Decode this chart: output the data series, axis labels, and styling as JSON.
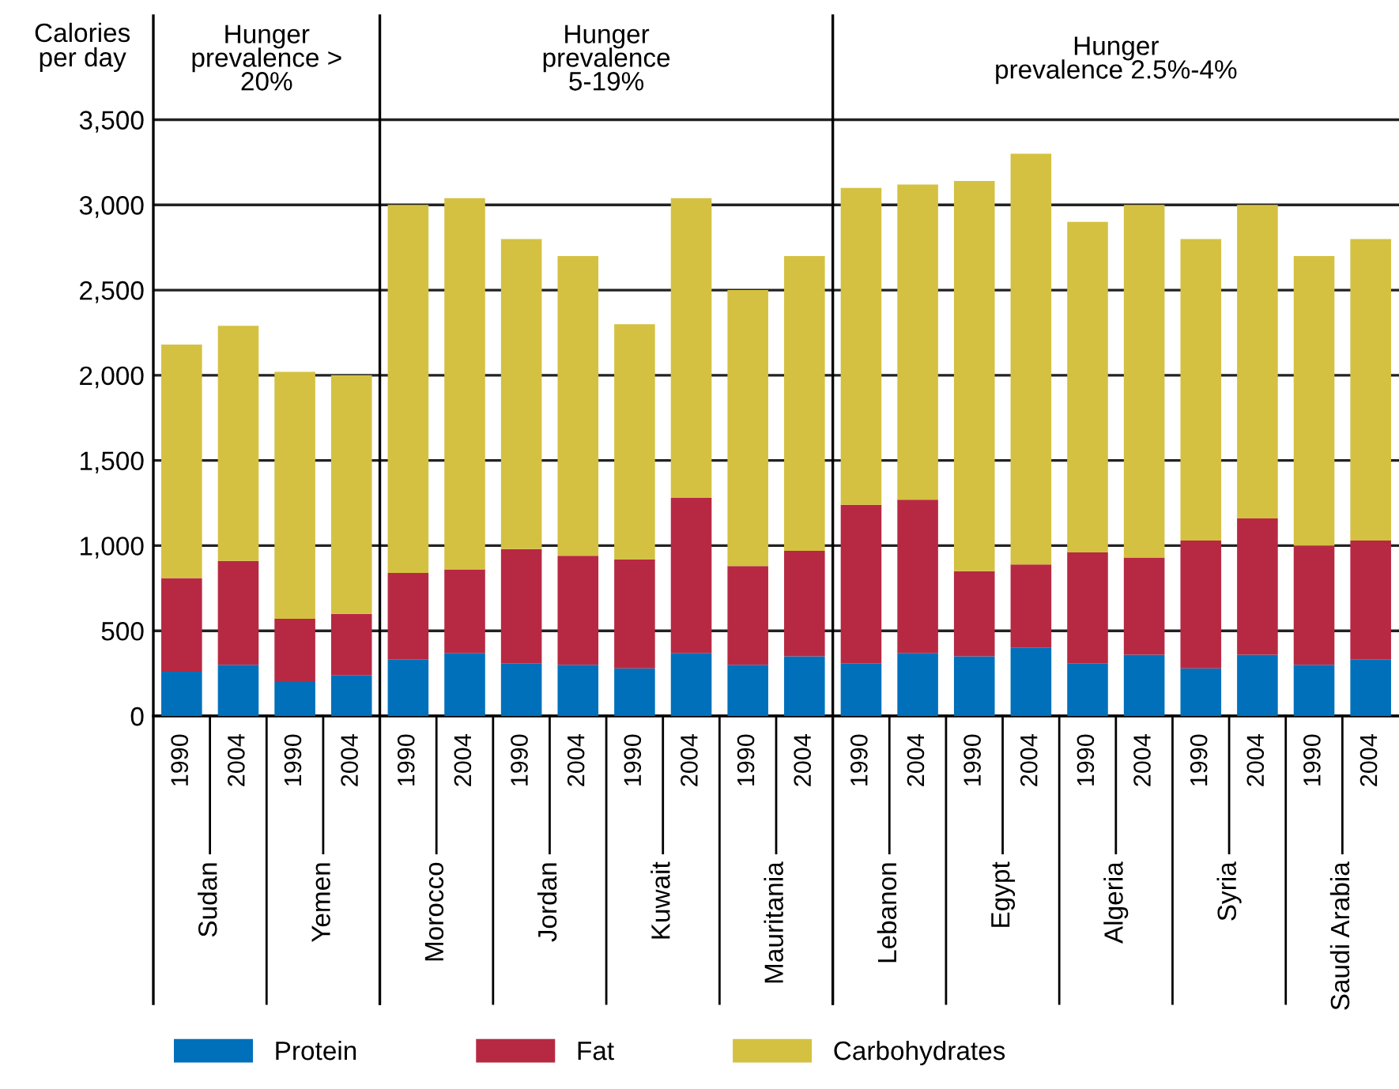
{
  "chart_data": {
    "type": "bar",
    "stacked": true,
    "ylabel": "Calories\nper day",
    "categories": [
      "1990",
      "2004",
      "1990",
      "2004",
      "1990",
      "2004",
      "1990",
      "2004",
      "1990",
      "2004",
      "1990",
      "2004",
      "1990",
      "2004",
      "1990",
      "2004",
      "1990",
      "2004",
      "1990",
      "2004",
      "1990",
      "2004"
    ],
    "series": [
      {
        "name": "Protein",
        "color": "#0070bb",
        "values": [
          260,
          300,
          200,
          240,
          330,
          370,
          310,
          300,
          280,
          370,
          300,
          350,
          310,
          370,
          350,
          400,
          310,
          360,
          280,
          360,
          300,
          330
        ]
      },
      {
        "name": "Fat",
        "color": "#b72942",
        "values": [
          550,
          610,
          370,
          360,
          510,
          490,
          670,
          640,
          640,
          910,
          580,
          620,
          930,
          900,
          500,
          490,
          650,
          570,
          750,
          800,
          700,
          700
        ]
      },
      {
        "name": "Carbohydrates",
        "color": "#d4c142",
        "values": [
          1370,
          1380,
          1450,
          1400,
          2160,
          2180,
          1820,
          1760,
          1380,
          1760,
          1620,
          1730,
          1860,
          1850,
          2290,
          2410,
          1940,
          2070,
          1770,
          1840,
          1700,
          1770
        ]
      }
    ],
    "ylim": [
      0,
      4110
    ],
    "yticks": [
      0,
      500,
      {
        "value": 1000,
        "label": "1,000"
      },
      {
        "value": 1500,
        "label": "1,500"
      },
      {
        "value": 2000,
        "label": "2,000"
      },
      {
        "value": 2500,
        "label": "2,500"
      },
      {
        "value": 3000,
        "label": "3,000"
      },
      {
        "value": 3500,
        "label": "3,500"
      }
    ],
    "grid": "y",
    "legend": "bottom left",
    "annotations": [
      "Hunger\nprevalence >\n20%",
      "Hunger\nprevalence\n5-19%",
      "Hunger\nprevalence 2.5%-4%",
      "Sudan",
      "Yemen",
      "Morocco",
      "Jordan",
      "Kuwait",
      "Mauritania",
      "Lebanon",
      "Egypt",
      "Algeria",
      "Syria",
      "Saudi Arabia"
    ]
  }
}
